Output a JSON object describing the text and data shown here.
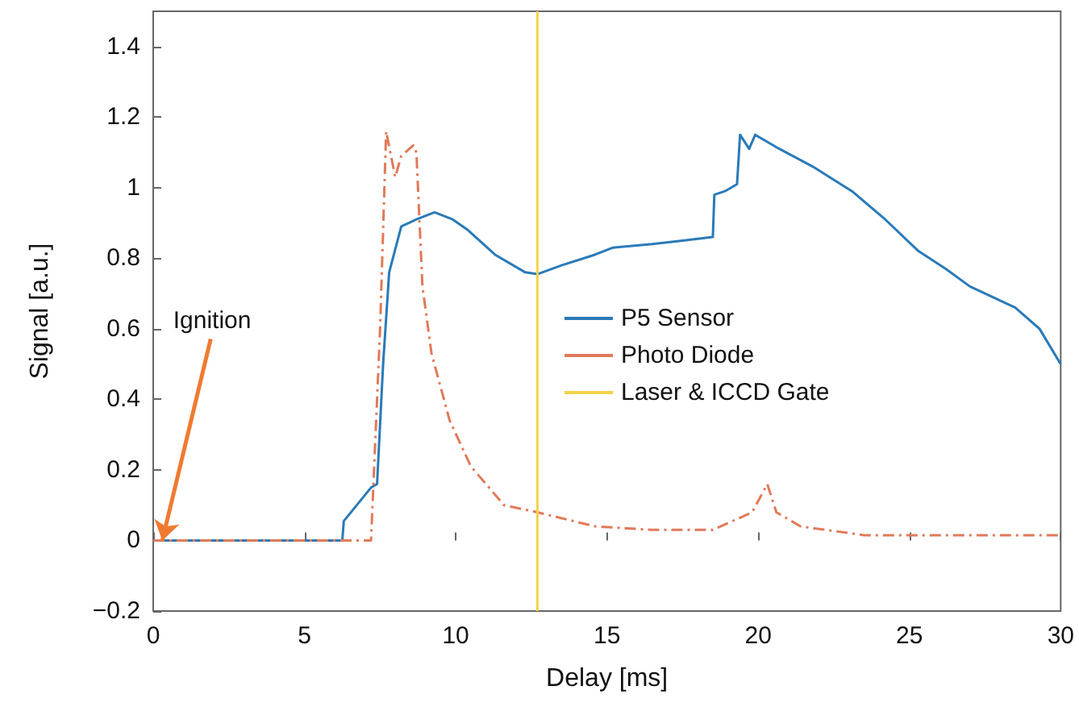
{
  "chart_data": {
    "type": "line",
    "xlabel": "Delay [ms]",
    "ylabel": "Signal [a.u.]",
    "xlim": [
      0,
      30
    ],
    "xticks": [
      0,
      5,
      10,
      15,
      20,
      25,
      30
    ],
    "ylim": [
      -0.2,
      1.5
    ],
    "yticks": [
      {
        "value": -0.2,
        "label": "−0.2"
      },
      0,
      0.2,
      0.4,
      0.6,
      0.8,
      1,
      1.2,
      1.4
    ],
    "grid": false,
    "legend": "right",
    "marker": "none",
    "series": [
      {
        "name": "P5 Sensor",
        "color": "#2a7ab8",
        "line_style": "solid",
        "x": [
          0,
          6.25,
          6.3,
          7.2,
          7.4,
          7.6,
          7.8,
          8.2,
          8.7,
          9.3,
          9.9,
          10.4,
          11.3,
          12.3,
          12.7,
          13.5,
          14.6,
          15.2,
          16.5,
          17.5,
          18.5,
          18.55,
          18.9,
          19.3,
          19.4,
          19.7,
          19.9,
          20.7,
          21.8,
          23.1,
          24.2,
          25.3,
          26.2,
          27.0,
          28.5,
          29.3,
          30
        ],
        "values": [
          0,
          0,
          0.055,
          0.15,
          0.16,
          0.5,
          0.76,
          0.89,
          0.91,
          0.93,
          0.91,
          0.88,
          0.81,
          0.76,
          0.755,
          0.78,
          0.81,
          0.83,
          0.84,
          0.85,
          0.86,
          0.98,
          0.99,
          1.01,
          1.15,
          1.11,
          1.15,
          1.11,
          1.06,
          0.99,
          0.91,
          0.82,
          0.77,
          0.72,
          0.66,
          0.6,
          0.5
        ]
      },
      {
        "name": "Photo Diode",
        "color": "#e07a5a",
        "line_style": "dashdot",
        "x": [
          0,
          7.2,
          7.5,
          7.7,
          8.0,
          8.2,
          8.6,
          8.7,
          8.9,
          9.2,
          9.8,
          10.5,
          11.6,
          12.7,
          14.6,
          16.5,
          18.5,
          19.8,
          20.3,
          20.6,
          21.4,
          23.5,
          26.5,
          30
        ],
        "values": [
          0,
          0,
          0.6,
          1.16,
          1.03,
          1.09,
          1.12,
          1.1,
          0.72,
          0.53,
          0.34,
          0.21,
          0.1,
          0.08,
          0.04,
          0.03,
          0.03,
          0.08,
          0.16,
          0.08,
          0.04,
          0.015,
          0.015,
          0.015
        ]
      },
      {
        "name": "Laser & ICCD Gate",
        "color": "#f2d34a",
        "line_style": "solid",
        "x": [
          12.7,
          12.7
        ],
        "values": [
          -0.2,
          1.5
        ]
      }
    ],
    "annotations": [
      {
        "text": "Ignition",
        "x": 0.3,
        "y": 0
      }
    ]
  }
}
